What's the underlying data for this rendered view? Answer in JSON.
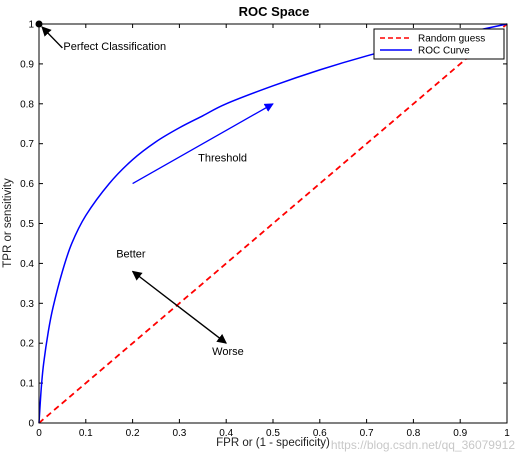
{
  "chart_data": {
    "type": "line",
    "title": "ROC Space",
    "xlabel": "FPR or (1 - specificity)",
    "ylabel": "TPR or sensitivity",
    "xlim": [
      0,
      1
    ],
    "ylim": [
      0,
      1
    ],
    "xticks": [
      "0",
      "0.1",
      "0.2",
      "0.3",
      "0.4",
      "0.5",
      "0.6",
      "0.7",
      "0.8",
      "0.9",
      "1"
    ],
    "yticks": [
      "0",
      "0.1",
      "0.2",
      "0.3",
      "0.4",
      "0.5",
      "0.6",
      "0.7",
      "0.8",
      "0.9",
      "1"
    ],
    "grid": false,
    "legend_position": "top-right",
    "series": [
      {
        "name": "Random guess",
        "color": "#ff0000",
        "style": "dashed",
        "x": [
          0,
          1
        ],
        "y": [
          0,
          1
        ]
      },
      {
        "name": "ROC Curve",
        "color": "#0000ff",
        "style": "solid",
        "x": [
          0,
          0.005,
          0.01,
          0.02,
          0.03,
          0.05,
          0.07,
          0.1,
          0.15,
          0.2,
          0.25,
          0.3,
          0.35,
          0.4,
          0.5,
          0.6,
          0.7,
          0.8,
          0.9,
          1.0
        ],
        "y": [
          0,
          0.09,
          0.15,
          0.23,
          0.29,
          0.38,
          0.45,
          0.52,
          0.6,
          0.66,
          0.705,
          0.74,
          0.77,
          0.8,
          0.845,
          0.885,
          0.92,
          0.95,
          0.975,
          1.0
        ]
      }
    ],
    "annotations": [
      {
        "text": "Perfect Classification",
        "point": [
          0,
          1
        ],
        "arrow_from": [
          0.05,
          0.93
        ],
        "arrow_to": [
          0,
          1
        ]
      },
      {
        "text": "Threshold",
        "color": "#0000ff",
        "arrow_from": [
          0.2,
          0.6
        ],
        "arrow_to": [
          0.5,
          0.8
        ]
      },
      {
        "text": "Better",
        "arrow_from": [
          0.3,
          0.29
        ],
        "arrow_to": [
          0.2,
          0.38
        ]
      },
      {
        "text": "Worse",
        "arrow_from": [
          0.3,
          0.29
        ],
        "arrow_to": [
          0.4,
          0.2
        ]
      }
    ],
    "watermark": "https://blog.csdn.net/qq_36079912"
  }
}
